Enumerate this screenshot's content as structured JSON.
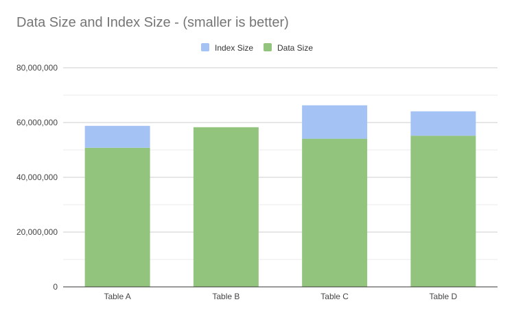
{
  "chart_data": {
    "type": "bar",
    "stacked": true,
    "title": "Data Size and Index Size - (smaller is better)",
    "categories": [
      "Table A",
      "Table B",
      "Table C",
      "Table D"
    ],
    "series": [
      {
        "name": "Data Size",
        "color": "#93c47d",
        "values": [
          50800000,
          58300000,
          54100000,
          55200000
        ]
      },
      {
        "name": "Index Size",
        "color": "#a4c2f4",
        "values": [
          8000000,
          0,
          12200000,
          8900000
        ]
      }
    ],
    "legend_order": [
      "Index Size",
      "Data Size"
    ],
    "legend_position": "top",
    "ylim": [
      0,
      80000000
    ],
    "y_ticks": [
      0,
      20000000,
      40000000,
      60000000,
      80000000
    ],
    "y_tick_labels": [
      "0",
      "20,000,000",
      "40,000,000",
      "60,000,000",
      "80,000,000"
    ],
    "minor_gridlines": true,
    "grid": true
  }
}
